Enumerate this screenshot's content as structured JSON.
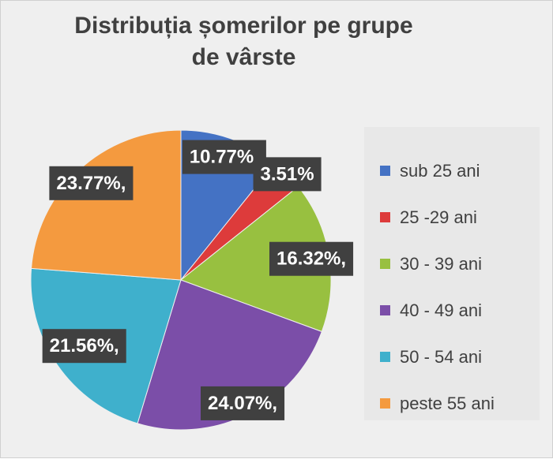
{
  "title": {
    "line1": "Distribuția șomerilor pe grupe",
    "line2": "de vârste"
  },
  "chart_data": {
    "type": "pie",
    "title": "Distribuția șomerilor pe grupe de vârste",
    "categories": [
      "sub 25 ani",
      "25 -29 ani",
      "30 - 39 ani",
      "40 - 49 ani",
      "50 - 54 ani",
      "peste 55 ani"
    ],
    "values": [
      10.77,
      3.51,
      16.32,
      24.07,
      21.56,
      23.77
    ],
    "data_labels": [
      "10.77%,",
      "3.51%",
      "16.32%,",
      "24.07%,",
      "21.56%,",
      "23.77%,"
    ],
    "colors": [
      "#4472c4",
      "#dd3b3b",
      "#98c040",
      "#7b4ea8",
      "#3fb0cc",
      "#f49a3f"
    ],
    "legend_position": "right"
  }
}
